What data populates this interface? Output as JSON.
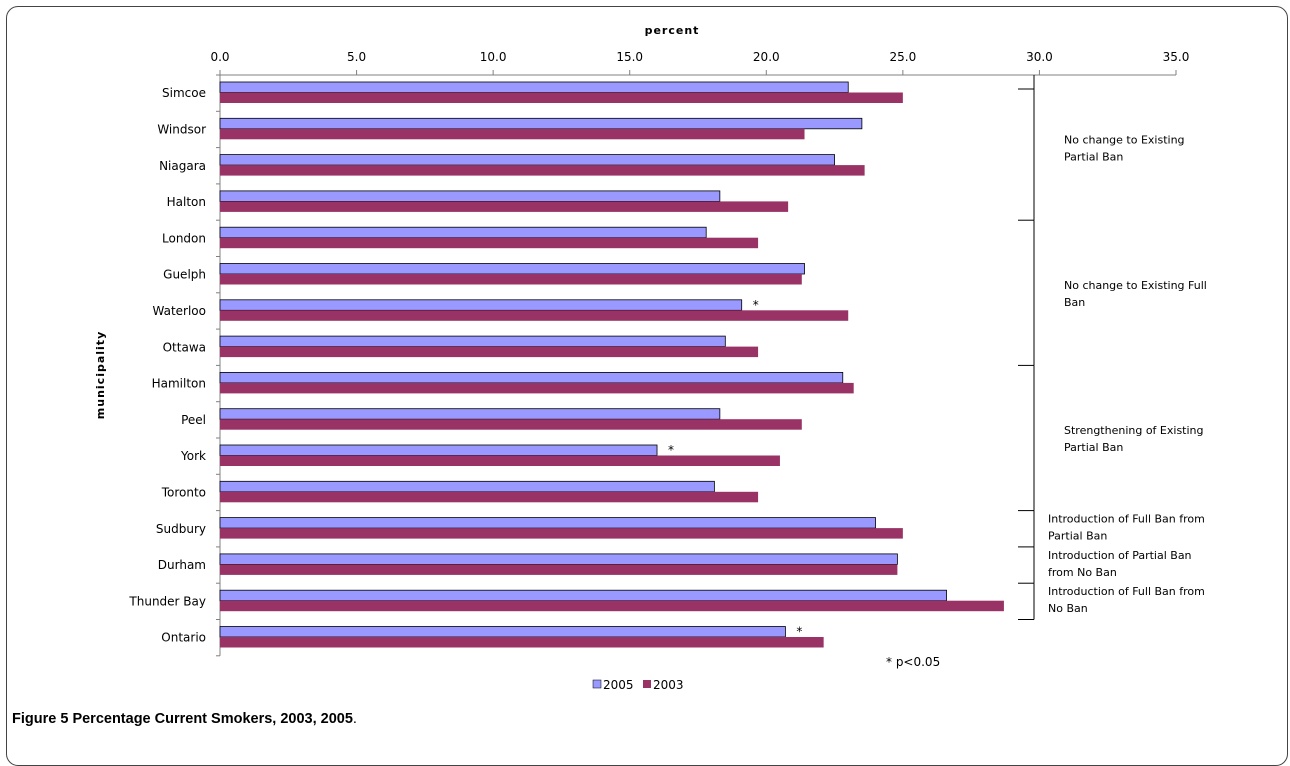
{
  "caption": {
    "label": "Figure 5",
    "text": "Percentage Current Smokers, 2003, 2005",
    "period": "."
  },
  "chart_data": {
    "type": "bar",
    "orientation": "horizontal",
    "xlabel": "percent",
    "ylabel": "municipality",
    "xlim": [
      0,
      35
    ],
    "xticks": [
      "0.0",
      "5.0",
      "10.0",
      "15.0",
      "20.0",
      "25.0",
      "30.0",
      "35.0"
    ],
    "grid": false,
    "categories": [
      "Simcoe",
      "Windsor",
      "Niagara",
      "Halton",
      "London",
      "Guelph",
      "Waterloo",
      "Ottawa",
      "Hamilton",
      "Peel",
      "York",
      "Toronto",
      "Sudbury",
      "Durham",
      "Thunder Bay",
      "Ontario"
    ],
    "series": [
      {
        "name": "2005",
        "color": "#9999ff",
        "values": [
          23.0,
          23.5,
          22.5,
          18.3,
          17.8,
          21.4,
          19.1,
          18.5,
          22.8,
          18.3,
          16.0,
          18.1,
          24.0,
          24.8,
          26.6,
          20.7
        ]
      },
      {
        "name": "2003",
        "color": "#993366",
        "values": [
          25.0,
          21.4,
          23.6,
          20.8,
          19.7,
          21.3,
          23.0,
          19.7,
          23.2,
          21.3,
          20.5,
          19.7,
          25.0,
          24.8,
          28.7,
          22.1
        ]
      }
    ],
    "significance_markers": [
      {
        "category": "Waterloo",
        "label": "*"
      },
      {
        "category": "York",
        "label": "*"
      },
      {
        "category": "Ontario",
        "label": "*"
      }
    ],
    "note": "* p<0.05",
    "legend_position": "bottom",
    "groups": [
      {
        "lines": [
          "No change to Existing",
          "Partial Ban"
        ],
        "categories": [
          "Simcoe",
          "Windsor",
          "Niagara",
          "Halton"
        ]
      },
      {
        "lines": [
          "No change to Existing Full",
          "Ban"
        ],
        "categories": [
          "London",
          "Guelph",
          "Waterloo",
          "Ottawa"
        ]
      },
      {
        "lines": [
          "Strengthening of Existing",
          "Partial Ban"
        ],
        "categories": [
          "Hamilton",
          "Peel",
          "York",
          "Toronto"
        ]
      },
      {
        "lines": [
          "Introduction of Full Ban from",
          "Partial Ban"
        ],
        "categories": [
          "Sudbury"
        ]
      },
      {
        "lines": [
          "Introduction of Partial Ban",
          "from No Ban"
        ],
        "categories": [
          "Durham"
        ]
      },
      {
        "lines": [
          "Introduction of Full Ban from",
          "No Ban"
        ],
        "categories": [
          "Thunder Bay"
        ]
      }
    ]
  }
}
